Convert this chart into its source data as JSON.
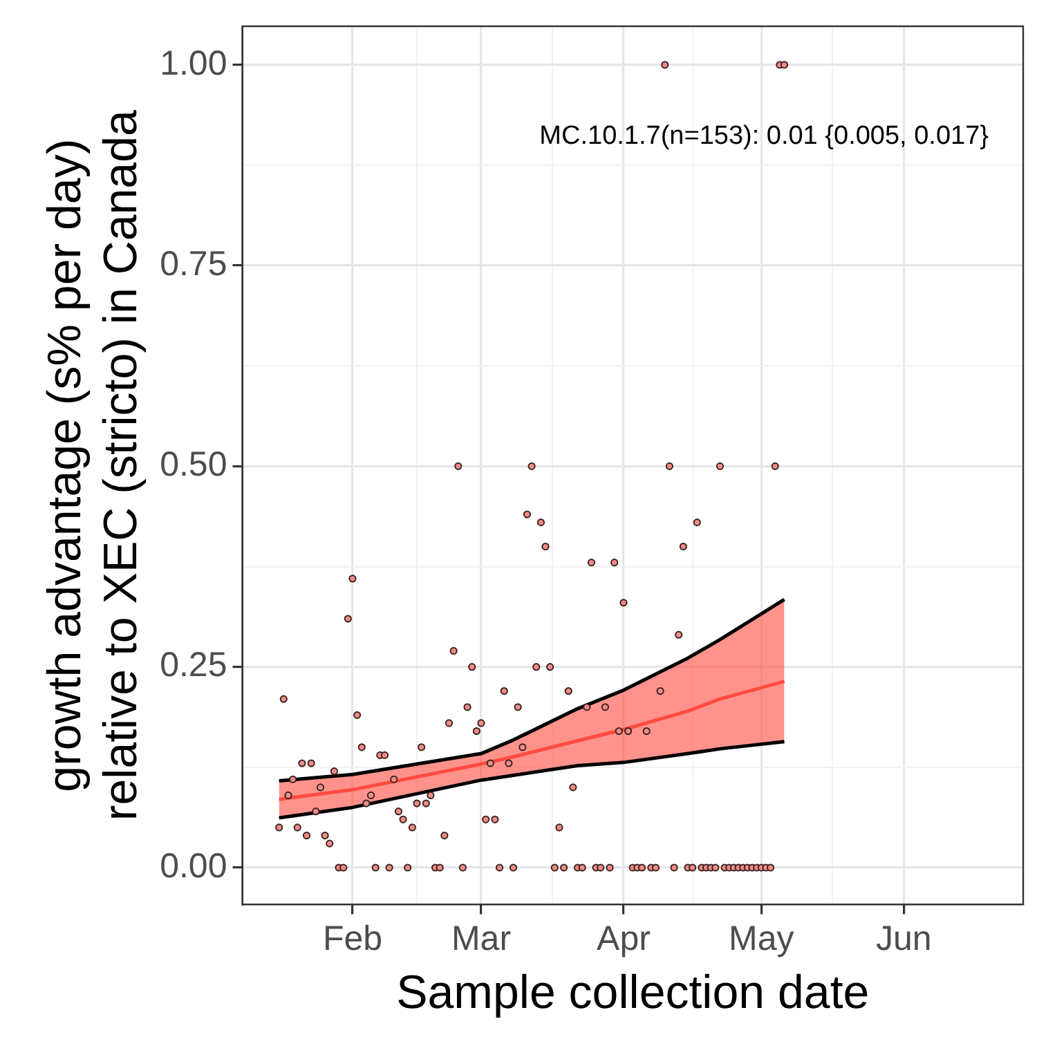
{
  "chart_data": {
    "type": "scatter",
    "xlabel": "Sample collection date",
    "ylabel": "growth advantage (s% per day)\nrelative to XEC (stricto) in Canada",
    "annotations": [
      "MC.10.1.7(n=153): 0.01 {0.005, 0.017}"
    ],
    "xlim": [
      "--01-08",
      "--06-27"
    ],
    "xticks": [
      {
        "value": "--02-01",
        "label": "Feb"
      },
      {
        "value": "--03-01",
        "label": "Mar"
      },
      {
        "value": "--04-01",
        "label": "Apr"
      },
      {
        "value": "--05-01",
        "label": "May"
      },
      {
        "value": "--06-01",
        "label": "Jun"
      }
    ],
    "ylim": [
      -0.046,
      1.048
    ],
    "yticks": [
      {
        "value": 0,
        "label": "0.00"
      },
      {
        "value": 0.25,
        "label": "0.25"
      },
      {
        "value": 0.5,
        "label": "0.50"
      },
      {
        "value": 0.75,
        "label": "0.75"
      },
      {
        "value": 1,
        "label": "1.00"
      }
    ],
    "grid": true,
    "legend": false,
    "marker": "circle",
    "series": [
      {
        "type": "line",
        "color": "#ff4b3e",
        "line_style": "solid",
        "marker": "none",
        "x": [
          "--01-16",
          "--02-01",
          "--03-01",
          "--03-08",
          "--03-22",
          "--04-01",
          "--04-15",
          "--04-22",
          "--05-06"
        ],
        "values": [
          0.085,
          0.097,
          0.129,
          0.138,
          0.158,
          0.172,
          0.195,
          0.21,
          0.232
        ],
        "lower": [
          0.062,
          0.075,
          0.109,
          0.115,
          0.127,
          0.131,
          0.142,
          0.148,
          0.157
        ],
        "upper": [
          0.108,
          0.116,
          0.142,
          0.159,
          0.198,
          0.221,
          0.261,
          0.284,
          0.334
        ]
      },
      {
        "type": "line",
        "color": "#000000",
        "line_style": "solid",
        "marker": "none",
        "x": [
          "--01-16",
          "--02-01",
          "--03-01",
          "--03-08",
          "--03-22",
          "--04-01",
          "--04-15",
          "--04-22",
          "--05-06"
        ],
        "values": [
          0.062,
          0.075,
          0.109,
          0.115,
          0.127,
          0.131,
          0.142,
          0.148,
          0.157
        ]
      },
      {
        "type": "line",
        "color": "#000000",
        "line_style": "solid",
        "marker": "none",
        "x": [
          "--01-16",
          "--02-01",
          "--03-01",
          "--03-08",
          "--03-22",
          "--04-01",
          "--04-15",
          "--04-22",
          "--05-06"
        ],
        "values": [
          0.108,
          0.116,
          0.142,
          0.159,
          0.198,
          0.221,
          0.261,
          0.284,
          0.334
        ]
      },
      {
        "color": "#f28b86",
        "x": [
          "--01-16",
          "--01-17",
          "--01-18",
          "--01-19",
          "--01-20",
          "--01-21",
          "--01-22",
          "--01-23",
          "--01-24",
          "--01-25",
          "--01-26",
          "--01-27",
          "--01-28",
          "--01-29",
          "--01-30",
          "--01-31",
          "--02-01",
          "--02-02",
          "--02-03",
          "--02-04",
          "--02-05",
          "--02-06",
          "--02-07",
          "--02-08",
          "--02-09",
          "--02-10",
          "--02-11",
          "--02-12",
          "--02-13",
          "--02-14",
          "--02-15",
          "--02-16",
          "--02-17",
          "--02-18",
          "--02-19",
          "--02-20",
          "--02-21",
          "--02-22",
          "--02-23",
          "--02-24",
          "--02-25",
          "--02-26",
          "--02-27",
          "--02-28",
          "--03-01",
          "--03-02",
          "--03-03",
          "--03-04",
          "--03-05",
          "--03-06",
          "--03-07",
          "--03-08",
          "--03-09",
          "--03-10",
          "--03-11",
          "--03-12",
          "--03-13",
          "--03-14",
          "--03-15",
          "--03-16",
          "--03-17",
          "--03-18",
          "--03-19",
          "--03-20",
          "--03-21",
          "--03-22",
          "--03-23",
          "--03-24",
          "--03-25",
          "--03-26",
          "--03-27",
          "--03-28",
          "--03-29",
          "--03-30",
          "--03-31",
          "--04-01",
          "--04-02",
          "--04-03",
          "--04-04",
          "--04-05",
          "--04-06",
          "--04-07",
          "--04-08",
          "--04-09",
          "--04-10",
          "--04-11",
          "--04-12",
          "--04-13",
          "--04-14",
          "--04-15",
          "--04-16",
          "--04-17",
          "--04-18",
          "--04-19",
          "--04-20",
          "--04-21",
          "--04-22",
          "--04-23",
          "--04-24",
          "--04-25",
          "--04-26",
          "--04-27",
          "--04-28",
          "--04-29",
          "--04-30",
          "--05-01",
          "--05-02",
          "--05-03",
          "--05-04",
          "--05-05",
          "--05-06"
        ],
        "values": [
          0.05,
          0.21,
          0.09,
          0.11,
          0.05,
          0.13,
          0.04,
          0.13,
          0.07,
          0.1,
          0.04,
          0.03,
          0.12,
          0,
          0,
          0.31,
          0.36,
          0.19,
          0.15,
          0.08,
          0.09,
          0,
          0.14,
          0.14,
          0,
          0.11,
          0.07,
          0.06,
          0,
          0.05,
          0.08,
          0.15,
          0.08,
          0.09,
          0,
          0,
          0.04,
          0.18,
          0.27,
          0.5,
          0,
          0.2,
          0.25,
          0.17,
          0.18,
          0.06,
          0.13,
          0.06,
          0,
          0.22,
          0.13,
          0,
          0.2,
          0.15,
          0.44,
          0.5,
          0.25,
          0.43,
          0.4,
          0.25,
          0,
          0.05,
          0,
          0.22,
          0.1,
          0,
          0,
          0.2,
          0.38,
          0,
          0,
          0.2,
          0,
          0.38,
          0.17,
          0.33,
          0.17,
          0,
          0,
          0,
          0.17,
          0,
          0,
          0.22,
          1,
          0.5,
          0,
          0.29,
          0.4,
          0,
          0,
          0.43,
          0,
          0,
          0,
          0,
          0.5,
          0,
          0,
          0,
          0,
          0,
          0,
          0,
          0,
          0,
          0,
          0,
          0.5,
          1,
          1
        ]
      }
    ]
  }
}
